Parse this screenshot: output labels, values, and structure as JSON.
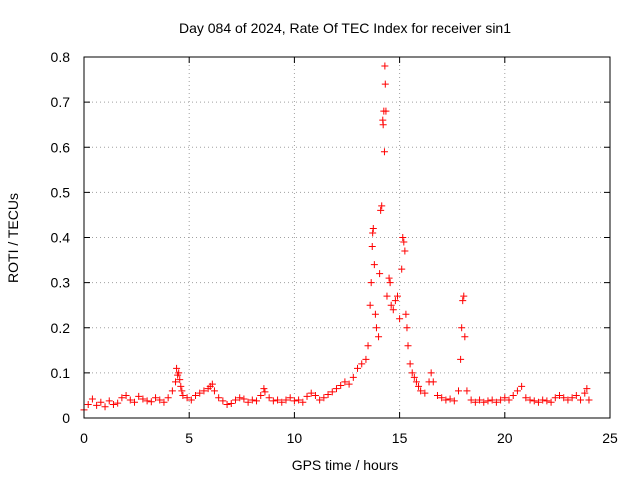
{
  "chart_data": {
    "type": "scatter",
    "title": "Day 084 of 2024, Rate Of TEC Index for receiver sin1",
    "xlabel": "GPS time / hours",
    "ylabel": "ROTI / TECUs",
    "xlim": [
      0,
      25
    ],
    "ylim": [
      0,
      0.8
    ],
    "x_ticks": [
      0,
      5,
      10,
      15,
      20,
      25
    ],
    "x_tick_labels": [
      "0",
      "5",
      "10",
      "15",
      "20",
      "25"
    ],
    "y_ticks": [
      0,
      0.1,
      0.2,
      0.3,
      0.4,
      0.5,
      0.6,
      0.7,
      0.8
    ],
    "y_tick_labels": [
      "0",
      "0.1",
      "0.2",
      "0.3",
      "0.4",
      "0.5",
      "0.6",
      "0.7",
      "0.8"
    ],
    "grid": true,
    "marker": "+",
    "point_color": "#ff0000",
    "series": [
      {
        "name": "ROTI",
        "points": [
          [
            0.0,
            0.018
          ],
          [
            0.2,
            0.03
          ],
          [
            0.4,
            0.042
          ],
          [
            0.6,
            0.028
          ],
          [
            0.8,
            0.035
          ],
          [
            1.0,
            0.025
          ],
          [
            1.2,
            0.038
          ],
          [
            1.4,
            0.03
          ],
          [
            1.6,
            0.033
          ],
          [
            1.8,
            0.045
          ],
          [
            2.0,
            0.05
          ],
          [
            2.2,
            0.04
          ],
          [
            2.4,
            0.035
          ],
          [
            2.6,
            0.048
          ],
          [
            2.8,
            0.042
          ],
          [
            3.0,
            0.038
          ],
          [
            3.2,
            0.036
          ],
          [
            3.4,
            0.045
          ],
          [
            3.6,
            0.04
          ],
          [
            3.8,
            0.035
          ],
          [
            4.0,
            0.045
          ],
          [
            4.2,
            0.06
          ],
          [
            4.35,
            0.08
          ],
          [
            4.4,
            0.11
          ],
          [
            4.45,
            0.095
          ],
          [
            4.5,
            0.1
          ],
          [
            4.55,
            0.085
          ],
          [
            4.6,
            0.07
          ],
          [
            4.65,
            0.06
          ],
          [
            4.7,
            0.05
          ],
          [
            4.9,
            0.045
          ],
          [
            5.1,
            0.04
          ],
          [
            5.3,
            0.05
          ],
          [
            5.5,
            0.055
          ],
          [
            5.7,
            0.06
          ],
          [
            5.9,
            0.065
          ],
          [
            6.0,
            0.07
          ],
          [
            6.1,
            0.075
          ],
          [
            6.2,
            0.06
          ],
          [
            6.4,
            0.045
          ],
          [
            6.6,
            0.038
          ],
          [
            6.8,
            0.03
          ],
          [
            7.0,
            0.032
          ],
          [
            7.2,
            0.04
          ],
          [
            7.4,
            0.045
          ],
          [
            7.6,
            0.042
          ],
          [
            7.8,
            0.035
          ],
          [
            8.0,
            0.04
          ],
          [
            8.2,
            0.038
          ],
          [
            8.4,
            0.05
          ],
          [
            8.55,
            0.065
          ],
          [
            8.6,
            0.058
          ],
          [
            8.8,
            0.045
          ],
          [
            9.0,
            0.038
          ],
          [
            9.2,
            0.04
          ],
          [
            9.4,
            0.035
          ],
          [
            9.6,
            0.04
          ],
          [
            9.8,
            0.045
          ],
          [
            10.0,
            0.038
          ],
          [
            10.2,
            0.04
          ],
          [
            10.4,
            0.035
          ],
          [
            10.6,
            0.048
          ],
          [
            10.8,
            0.055
          ],
          [
            11.0,
            0.05
          ],
          [
            11.2,
            0.04
          ],
          [
            11.4,
            0.045
          ],
          [
            11.6,
            0.052
          ],
          [
            11.8,
            0.058
          ],
          [
            12.0,
            0.065
          ],
          [
            12.2,
            0.072
          ],
          [
            12.4,
            0.08
          ],
          [
            12.6,
            0.075
          ],
          [
            12.8,
            0.09
          ],
          [
            13.0,
            0.11
          ],
          [
            13.2,
            0.12
          ],
          [
            13.4,
            0.13
          ],
          [
            13.5,
            0.16
          ],
          [
            13.6,
            0.25
          ],
          [
            13.65,
            0.3
          ],
          [
            13.7,
            0.38
          ],
          [
            13.72,
            0.41
          ],
          [
            13.75,
            0.42
          ],
          [
            13.8,
            0.34
          ],
          [
            13.85,
            0.23
          ],
          [
            13.9,
            0.2
          ],
          [
            14.0,
            0.18
          ],
          [
            14.05,
            0.32
          ],
          [
            14.1,
            0.46
          ],
          [
            14.15,
            0.47
          ],
          [
            14.2,
            0.66
          ],
          [
            14.22,
            0.65
          ],
          [
            14.25,
            0.68
          ],
          [
            14.28,
            0.59
          ],
          [
            14.3,
            0.78
          ],
          [
            14.32,
            0.74
          ],
          [
            14.35,
            0.68
          ],
          [
            14.4,
            0.27
          ],
          [
            14.5,
            0.31
          ],
          [
            14.55,
            0.3
          ],
          [
            14.6,
            0.25
          ],
          [
            14.7,
            0.24
          ],
          [
            14.8,
            0.26
          ],
          [
            14.9,
            0.27
          ],
          [
            15.0,
            0.22
          ],
          [
            15.1,
            0.33
          ],
          [
            15.15,
            0.4
          ],
          [
            15.2,
            0.39
          ],
          [
            15.25,
            0.37
          ],
          [
            15.3,
            0.23
          ],
          [
            15.35,
            0.2
          ],
          [
            15.4,
            0.16
          ],
          [
            15.5,
            0.12
          ],
          [
            15.6,
            0.1
          ],
          [
            15.7,
            0.09
          ],
          [
            15.8,
            0.08
          ],
          [
            15.9,
            0.07
          ],
          [
            16.0,
            0.06
          ],
          [
            16.2,
            0.055
          ],
          [
            16.4,
            0.08
          ],
          [
            16.5,
            0.1
          ],
          [
            16.6,
            0.08
          ],
          [
            16.8,
            0.05
          ],
          [
            17.0,
            0.045
          ],
          [
            17.2,
            0.04
          ],
          [
            17.4,
            0.042
          ],
          [
            17.6,
            0.038
          ],
          [
            17.8,
            0.06
          ],
          [
            17.9,
            0.13
          ],
          [
            17.95,
            0.2
          ],
          [
            18.0,
            0.26
          ],
          [
            18.05,
            0.27
          ],
          [
            18.1,
            0.18
          ],
          [
            18.2,
            0.06
          ],
          [
            18.4,
            0.04
          ],
          [
            18.6,
            0.035
          ],
          [
            18.8,
            0.04
          ],
          [
            19.0,
            0.035
          ],
          [
            19.2,
            0.038
          ],
          [
            19.4,
            0.04
          ],
          [
            19.6,
            0.035
          ],
          [
            19.8,
            0.04
          ],
          [
            20.0,
            0.045
          ],
          [
            20.2,
            0.04
          ],
          [
            20.4,
            0.05
          ],
          [
            20.6,
            0.06
          ],
          [
            20.8,
            0.07
          ],
          [
            21.0,
            0.045
          ],
          [
            21.2,
            0.04
          ],
          [
            21.4,
            0.038
          ],
          [
            21.6,
            0.035
          ],
          [
            21.8,
            0.04
          ],
          [
            22.0,
            0.038
          ],
          [
            22.2,
            0.035
          ],
          [
            22.4,
            0.045
          ],
          [
            22.6,
            0.05
          ],
          [
            22.8,
            0.045
          ],
          [
            23.0,
            0.04
          ],
          [
            23.2,
            0.045
          ],
          [
            23.4,
            0.05
          ],
          [
            23.6,
            0.04
          ],
          [
            23.8,
            0.055
          ],
          [
            23.9,
            0.065
          ],
          [
            24.0,
            0.04
          ]
        ]
      }
    ]
  }
}
